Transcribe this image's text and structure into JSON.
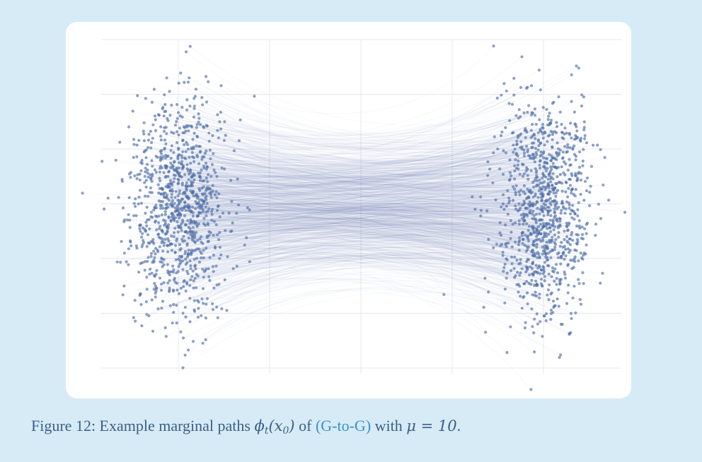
{
  "chart_data": {
    "type": "scatter",
    "title": "",
    "xlabel": "",
    "ylabel": "",
    "grid": true,
    "legend": "none",
    "xlim": [
      0,
      1
    ],
    "ylim": [
      -3,
      3
    ],
    "x_ticks": [
      0.0,
      0.25,
      0.5,
      0.75,
      1.0
    ],
    "y_ticks": [
      -3,
      -2,
      -1,
      0,
      1,
      2,
      3
    ],
    "x_endpoints": [
      0,
      1
    ],
    "n_paths": 1000,
    "mu": 10,
    "point_color": "#4f6fa8",
    "path_color": "#5b74b0",
    "grid_color": "#e6e8ee",
    "source_distribution": {
      "name": "Gaussian",
      "mean": 0,
      "std": 1
    },
    "target_distribution": {
      "name": "Gaussian",
      "mean": 0,
      "std": 1
    }
  },
  "caption": {
    "prefix": "Figure 12: Example marginal paths ",
    "phi": "ϕ",
    "phi_sub": "t",
    "phi_arg": "(x",
    "phi_arg_sub": "0",
    "phi_close": ")",
    "middle": " of ",
    "section": "(G-to-G)",
    "with": " with ",
    "mu_symbol": "μ",
    "equals": " = ",
    "mu_value": "10",
    "end": "."
  }
}
